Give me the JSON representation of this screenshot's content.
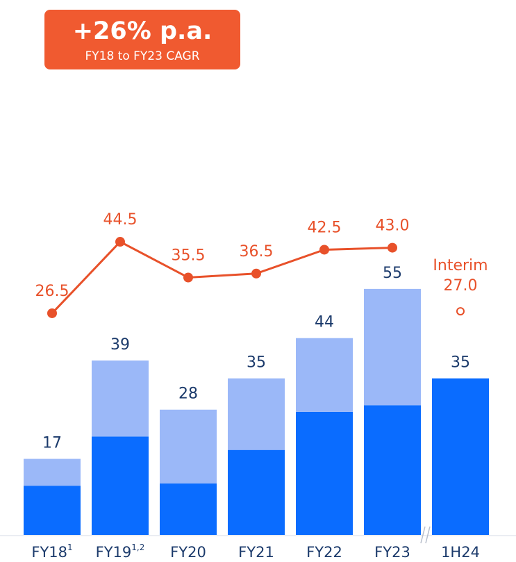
{
  "chart_data": {
    "type": "bar",
    "annotations": {
      "headline": "+26% p.a.",
      "subline": "FY18 to FY23 CAGR",
      "interim": "Interim"
    },
    "categories": [
      "FY18",
      "FY19",
      "FY20",
      "FY21",
      "FY22",
      "FY23",
      "1H24"
    ],
    "category_notes": [
      "1",
      "1,2",
      null,
      null,
      null,
      null,
      null
    ],
    "stacked": true,
    "series": [
      {
        "color": "#0a6cff",
        "values": [
          11,
          22,
          11.5,
          19,
          27.5,
          29,
          35
        ]
      },
      {
        "color": "#9bb8f8",
        "values": [
          6,
          17,
          16.5,
          16,
          16.5,
          26,
          null
        ]
      }
    ],
    "totals": [
      17,
      39,
      28,
      35,
      44,
      55,
      35
    ],
    "ylim": [
      0,
      73
    ],
    "lines": [
      {
        "type": "line",
        "axis": "y2",
        "color": "#e8512a",
        "values": [
          26.5,
          44.5,
          35.5,
          36.5,
          42.5,
          43.0,
          null
        ],
        "value_labels": [
          "26.5",
          "44.5",
          "35.5",
          "36.5",
          "42.5",
          "43.0",
          null
        ]
      },
      {
        "type": "scatter",
        "axis": "y2",
        "color": "#e8512a",
        "hollow": true,
        "values": [
          null,
          null,
          null,
          null,
          null,
          null,
          27.0
        ],
        "value_labels": [
          null,
          null,
          null,
          null,
          null,
          null,
          "27.0"
        ]
      }
    ],
    "y2lim": [
      -29.3,
      52.9
    ]
  }
}
